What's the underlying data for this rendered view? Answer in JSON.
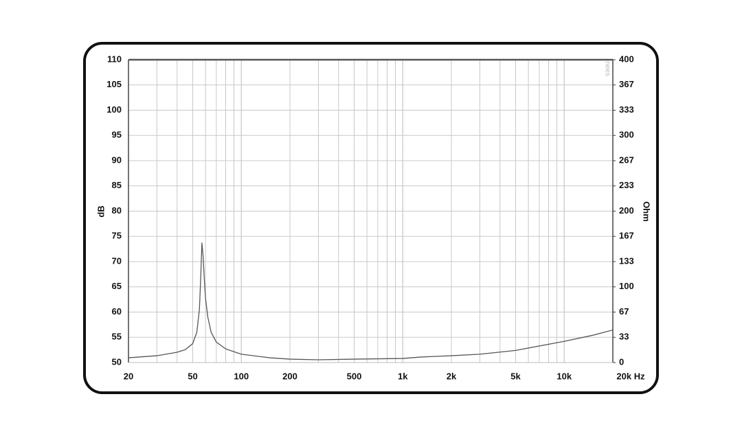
{
  "chart_data": {
    "type": "line",
    "y_label": "dB",
    "y2_label": "Ohm",
    "watermark": "nees",
    "log_x": true,
    "grid": true,
    "xlim": [
      20,
      20000
    ],
    "xticks": [
      20,
      50,
      100,
      200,
      500,
      {
        "value": 1000,
        "label": "1k"
      },
      {
        "value": 2000,
        "label": "2k"
      },
      {
        "value": 5000,
        "label": "5k"
      },
      {
        "value": 10000,
        "label": "10k"
      },
      {
        "value": 20000,
        "label": "20k Hz"
      }
    ],
    "ylim": [
      50,
      110
    ],
    "yticks": [
      50,
      55,
      60,
      65,
      70,
      75,
      80,
      85,
      90,
      95,
      100,
      105,
      110
    ],
    "y2lim": [
      0,
      400
    ],
    "y2ticks": [
      0,
      {
        "value": 33.33,
        "label": "33"
      },
      {
        "value": 66.67,
        "label": "67"
      },
      100,
      {
        "value": 133.33,
        "label": "133"
      },
      {
        "value": 166.67,
        "label": "167"
      },
      200,
      {
        "value": 233.33,
        "label": "233"
      },
      {
        "value": 266.67,
        "label": "267"
      },
      300,
      {
        "value": 333.33,
        "label": "333"
      },
      {
        "value": 366.67,
        "label": "367"
      },
      400
    ],
    "series": [
      {
        "color": "#555555",
        "axis": "y2",
        "x": [
          20,
          30,
          40,
          45,
          50,
          53,
          55,
          56,
          57,
          58,
          59,
          60,
          62,
          65,
          70,
          80,
          100,
          150,
          200,
          300,
          500,
          1000,
          1300,
          2000,
          3000,
          5000,
          10000,
          15000,
          20000
        ],
        "values": [
          6.3,
          9,
          13.6,
          17,
          25,
          40,
          70,
          110,
          158,
          140,
          110,
          85,
          60,
          40,
          27,
          18,
          11,
          6.3,
          4.5,
          3.6,
          4.5,
          5.4,
          7.3,
          9,
          11,
          16,
          28,
          36,
          43
        ]
      }
    ]
  }
}
